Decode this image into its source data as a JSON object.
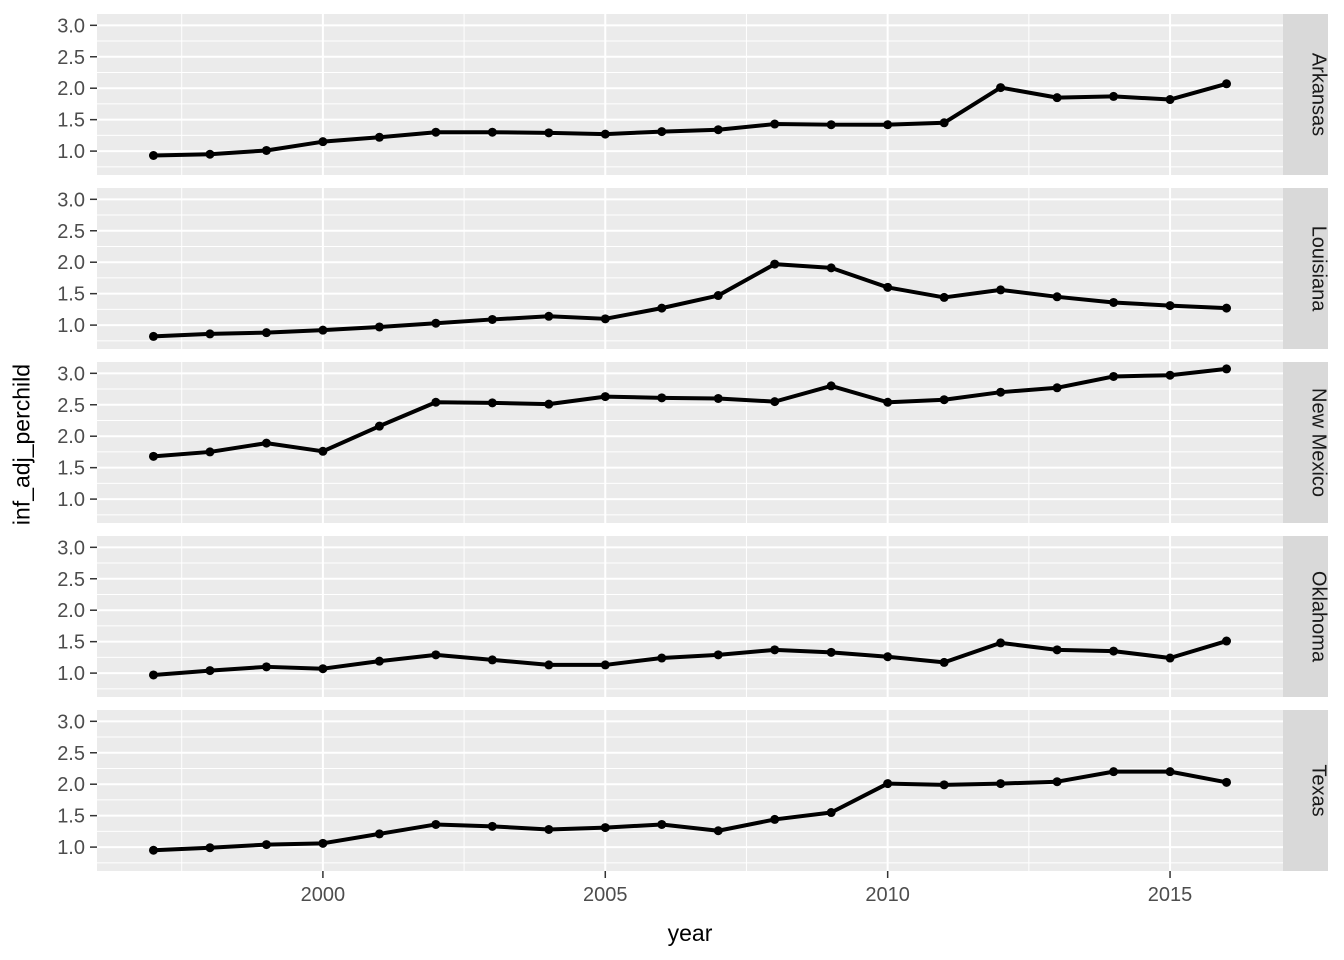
{
  "figure": {
    "x_axis_title": "year",
    "y_axis_title": "inf_adj_perchild"
  },
  "style": {
    "panel_bg": "#EBEBEB",
    "strip_bg": "#D9D9D9",
    "grid_color": "#FFFFFF",
    "line_color": "#000000",
    "axis_text_color": "#4D4D4D",
    "tick_color": "#333333",
    "strip_text_color": "#1A1A1A"
  },
  "chart_data": {
    "type": "line",
    "title": "",
    "xlabel": "year",
    "ylabel": "inf_adj_perchild",
    "facet_variable": "state",
    "facet_strip_position": "right",
    "legend_position": "none",
    "grid": true,
    "xlim": [
      1996,
      2017
    ],
    "ylim": [
      0.62,
      3.18
    ],
    "x_major_ticks": [
      2000,
      2005,
      2010,
      2015
    ],
    "x_tick_labels": [
      "2000",
      "2005",
      "2010",
      "2015"
    ],
    "x_minor_gridlines": [
      1997.5,
      2002.5,
      2007.5,
      2012.5
    ],
    "y_major_ticks": [
      1.0,
      1.5,
      2.0,
      2.5,
      3.0
    ],
    "y_tick_labels": [
      "1.0",
      "1.5",
      "2.0",
      "2.5",
      "3.0"
    ],
    "y_minor_gridlines": [
      0.75,
      1.25,
      1.75,
      2.25,
      2.75
    ],
    "x": [
      1997,
      1998,
      1999,
      2000,
      2001,
      2002,
      2003,
      2004,
      2005,
      2006,
      2007,
      2008,
      2009,
      2010,
      2011,
      2012,
      2013,
      2014,
      2015,
      2016
    ],
    "series": [
      {
        "name": "Arkansas",
        "values": [
          0.93,
          0.95,
          1.01,
          1.15,
          1.22,
          1.3,
          1.3,
          1.29,
          1.27,
          1.31,
          1.34,
          1.43,
          1.42,
          1.42,
          1.45,
          2.01,
          1.85,
          1.87,
          1.82,
          2.07
        ]
      },
      {
        "name": "Louisiana",
        "values": [
          0.82,
          0.86,
          0.88,
          0.92,
          0.97,
          1.03,
          1.09,
          1.14,
          1.1,
          1.27,
          1.47,
          1.97,
          1.91,
          1.6,
          1.44,
          1.56,
          1.45,
          1.36,
          1.31,
          1.27
        ]
      },
      {
        "name": "New Mexico",
        "values": [
          1.68,
          1.75,
          1.89,
          1.76,
          2.16,
          2.54,
          2.53,
          2.51,
          2.63,
          2.61,
          2.6,
          2.55,
          2.8,
          2.54,
          2.58,
          2.7,
          2.77,
          2.95,
          2.97,
          3.07
        ]
      },
      {
        "name": "Oklahoma",
        "values": [
          0.97,
          1.04,
          1.1,
          1.07,
          1.19,
          1.29,
          1.21,
          1.13,
          1.13,
          1.24,
          1.29,
          1.37,
          1.33,
          1.26,
          1.17,
          1.48,
          1.37,
          1.35,
          1.24,
          1.51
        ]
      },
      {
        "name": "Texas",
        "values": [
          0.95,
          0.99,
          1.04,
          1.06,
          1.21,
          1.36,
          1.33,
          1.28,
          1.31,
          1.36,
          1.26,
          1.44,
          1.55,
          2.01,
          1.99,
          2.01,
          2.04,
          2.2,
          2.2,
          2.03
        ]
      }
    ]
  }
}
